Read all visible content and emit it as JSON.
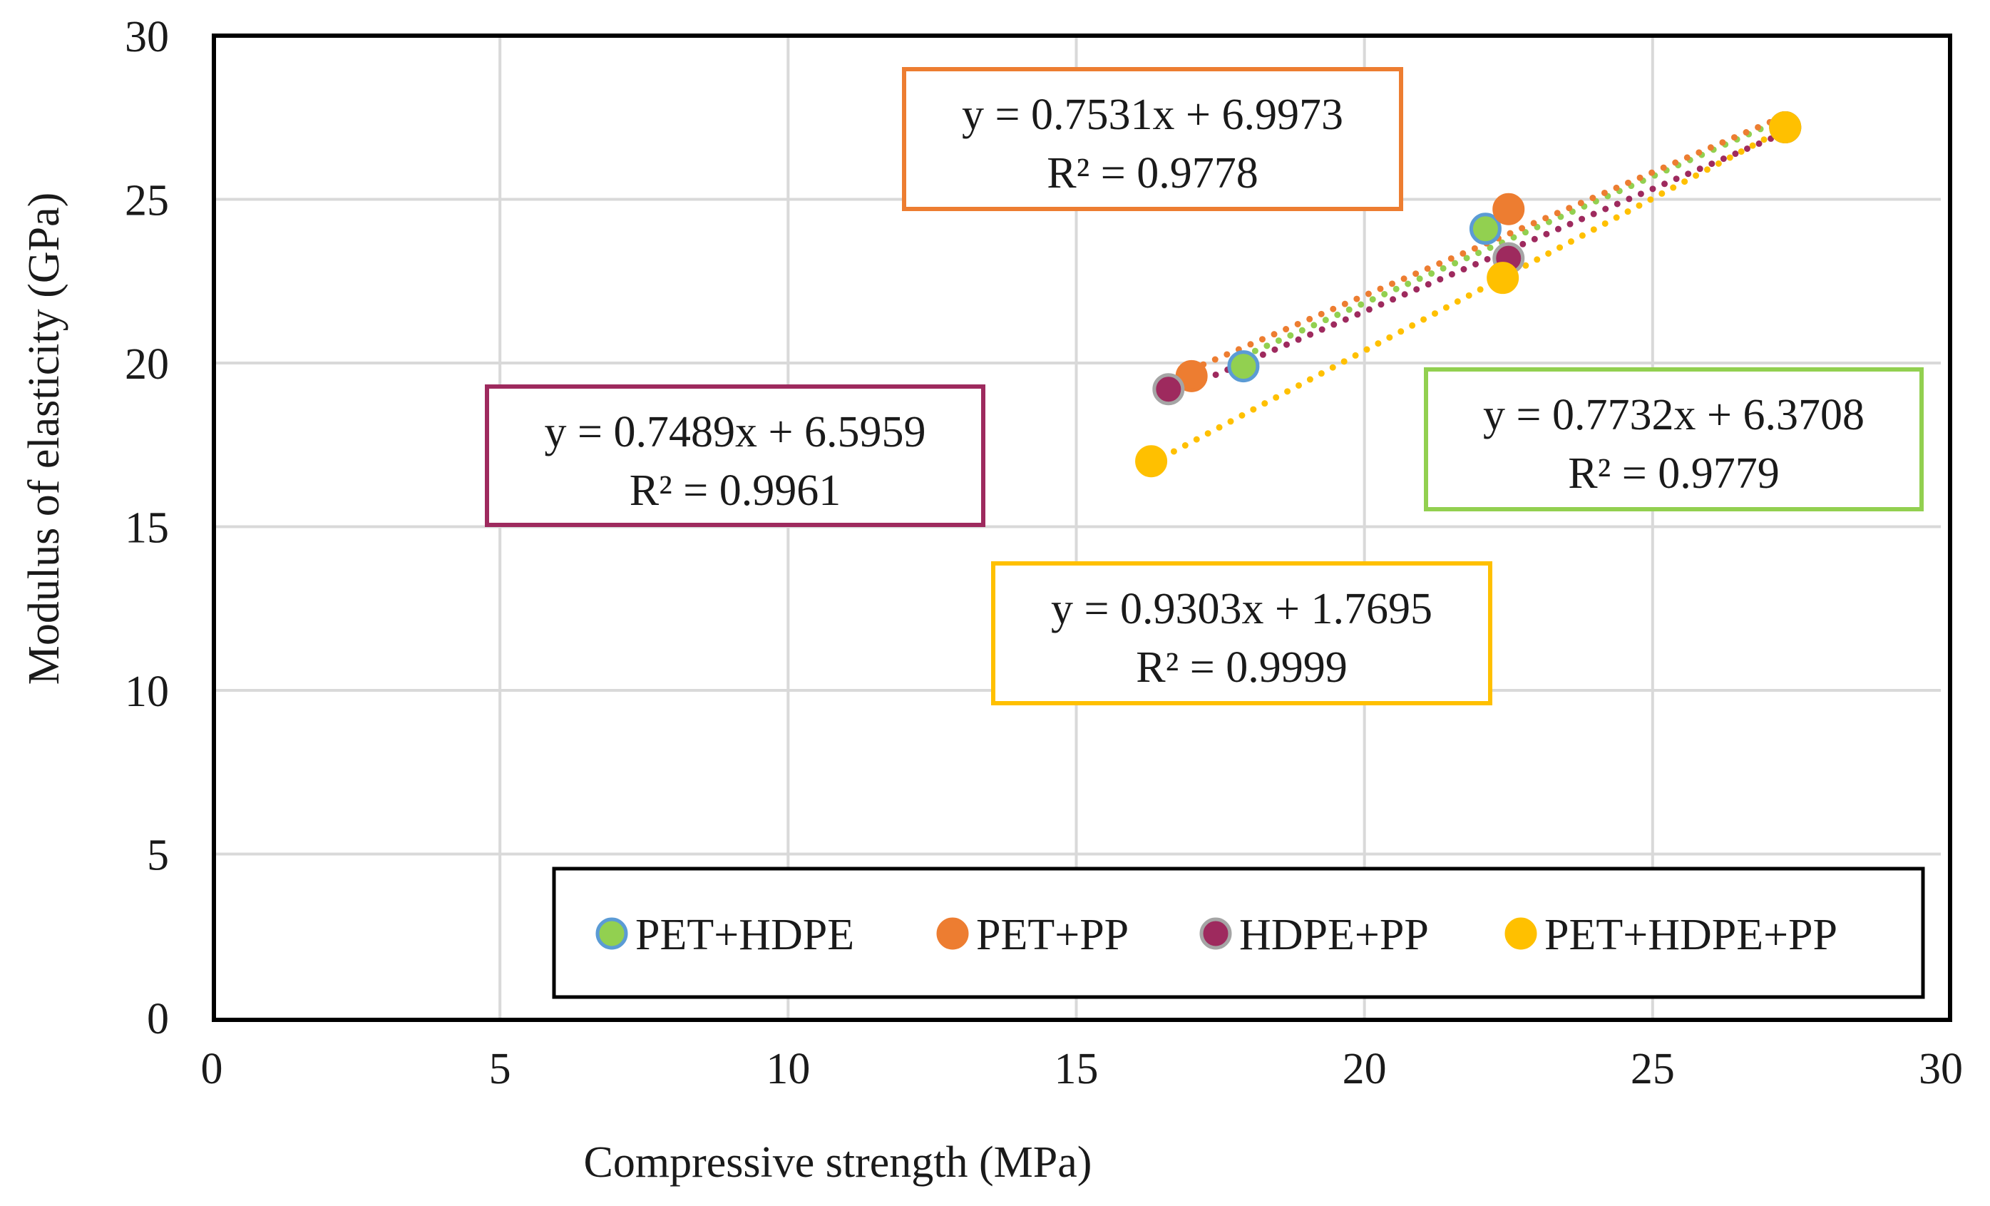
{
  "chart_data": {
    "type": "scatter",
    "xlabel": "Compressive strength (MPa)",
    "ylabel": "Modulus of elasticity (GPa)",
    "xlim": [
      0,
      30
    ],
    "ylim": [
      0,
      30
    ],
    "x_ticks": [
      "0",
      "5",
      "10",
      "15",
      "20",
      "25",
      "30"
    ],
    "y_ticks": [
      "0",
      "5",
      "10",
      "15",
      "20",
      "25",
      "30"
    ],
    "grid": true,
    "legend_position": "bottom-right",
    "series": [
      {
        "name": "PET+HDPE",
        "color": "#92D050",
        "marker_edge": "#5B9BD5",
        "points": [
          [
            17.9,
            19.9
          ],
          [
            22.1,
            24.1
          ],
          [
            27.3,
            27.2
          ]
        ],
        "trendline": {
          "x_range": [
            17.9,
            27.3
          ],
          "equation": "y = 0.7732x + 6.3708",
          "r2": "R² = 0.9779",
          "box_color": "#92D050"
        }
      },
      {
        "name": "PET+PP",
        "color": "#ED7D31",
        "marker_edge": "#ED7D31",
        "points": [
          [
            17.0,
            19.6
          ],
          [
            22.5,
            24.7
          ],
          [
            27.3,
            27.2
          ]
        ],
        "trendline": {
          "x_range": [
            17.0,
            27.3
          ],
          "equation": "y = 0.7531x + 6.9973",
          "r2": "R² = 0.9778",
          "box_color": "#ED7D31"
        }
      },
      {
        "name": "HDPE+PP",
        "color": "#9E2A5E",
        "marker_edge": "#A5A5A5",
        "points": [
          [
            16.6,
            19.2
          ],
          [
            22.5,
            23.2
          ],
          [
            27.3,
            27.2
          ]
        ],
        "trendline": {
          "x_range": [
            16.6,
            27.3
          ],
          "equation": "y = 0.7489x + 6.5959",
          "r2": "R² = 0.9961",
          "box_color": "#9E2A5E"
        }
      },
      {
        "name": "PET+HDPE+PP",
        "color": "#FFC000",
        "marker_edge": "#FFC000",
        "points": [
          [
            16.3,
            17.0
          ],
          [
            22.4,
            22.6
          ],
          [
            27.3,
            27.2
          ]
        ],
        "trendline": {
          "x_range": [
            16.3,
            27.3
          ],
          "equation": "y = 0.9303x + 1.7695",
          "r2": "R² = 0.9999",
          "box_color": "#FFC000"
        }
      }
    ]
  }
}
